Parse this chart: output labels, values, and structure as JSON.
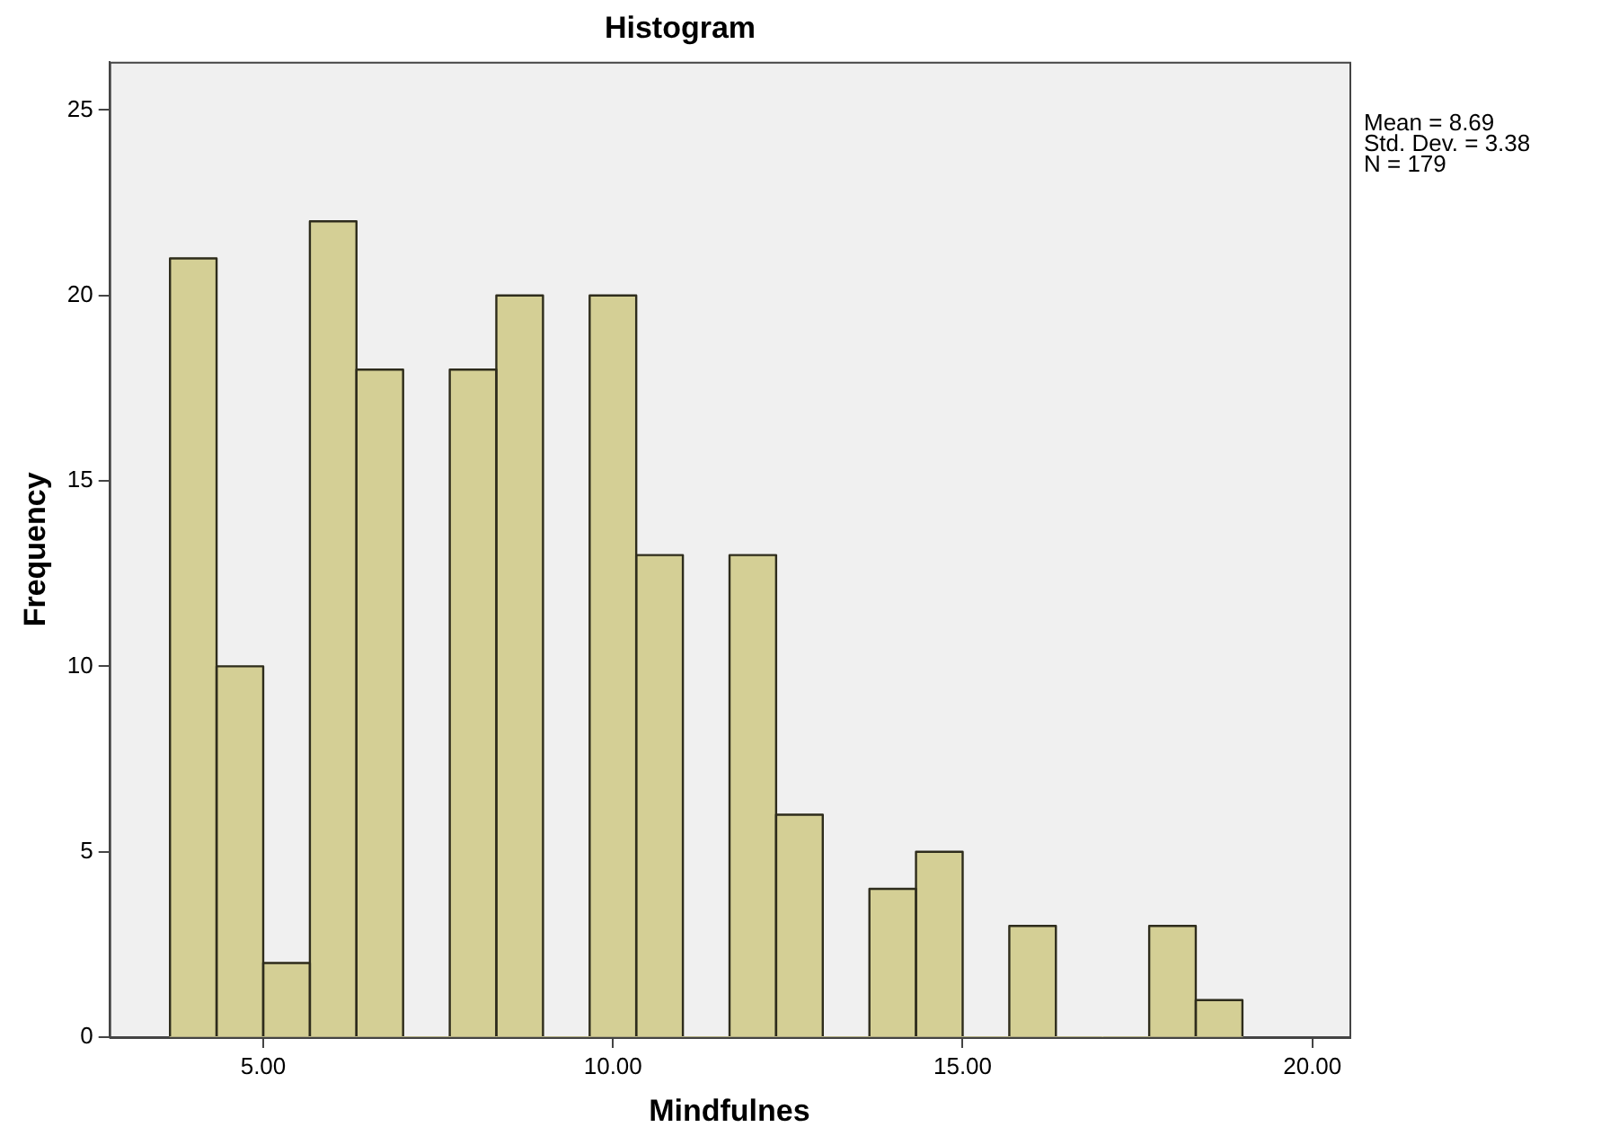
{
  "chart_data": {
    "type": "histogram",
    "title": "Histogram",
    "xlabel": "Mindfulnes",
    "ylabel": "Frequency",
    "bins": [
      3.667,
      4.333,
      5,
      5.667,
      6.333,
      7,
      7.667,
      8.333,
      9,
      9.667,
      10.333,
      11,
      11.667,
      12.333,
      13,
      13.667,
      14.333,
      15,
      15.667,
      16.333,
      17,
      17.667,
      18.333,
      19
    ],
    "values": [
      21,
      10,
      2,
      22,
      18,
      0,
      18,
      20,
      0,
      20,
      13,
      0,
      13,
      6,
      0,
      4,
      5,
      0,
      3,
      0,
      0,
      3,
      1
    ],
    "color": "#d4cf95",
    "xlim": [
      2.8,
      20.53
    ],
    "xticks": [
      {
        "value": 5,
        "label": "5.00"
      },
      {
        "value": 10,
        "label": "10.00"
      },
      {
        "value": 15,
        "label": "15.00"
      },
      {
        "value": 20,
        "label": "20.00"
      }
    ],
    "ylim": [
      0,
      26.3
    ],
    "yticks": [
      0,
      5,
      10,
      15,
      20,
      25
    ],
    "grid": false,
    "legend": false,
    "annotations": [
      "Mean = 8.69",
      "Std. Dev. = 3.38",
      "N = 179"
    ]
  }
}
